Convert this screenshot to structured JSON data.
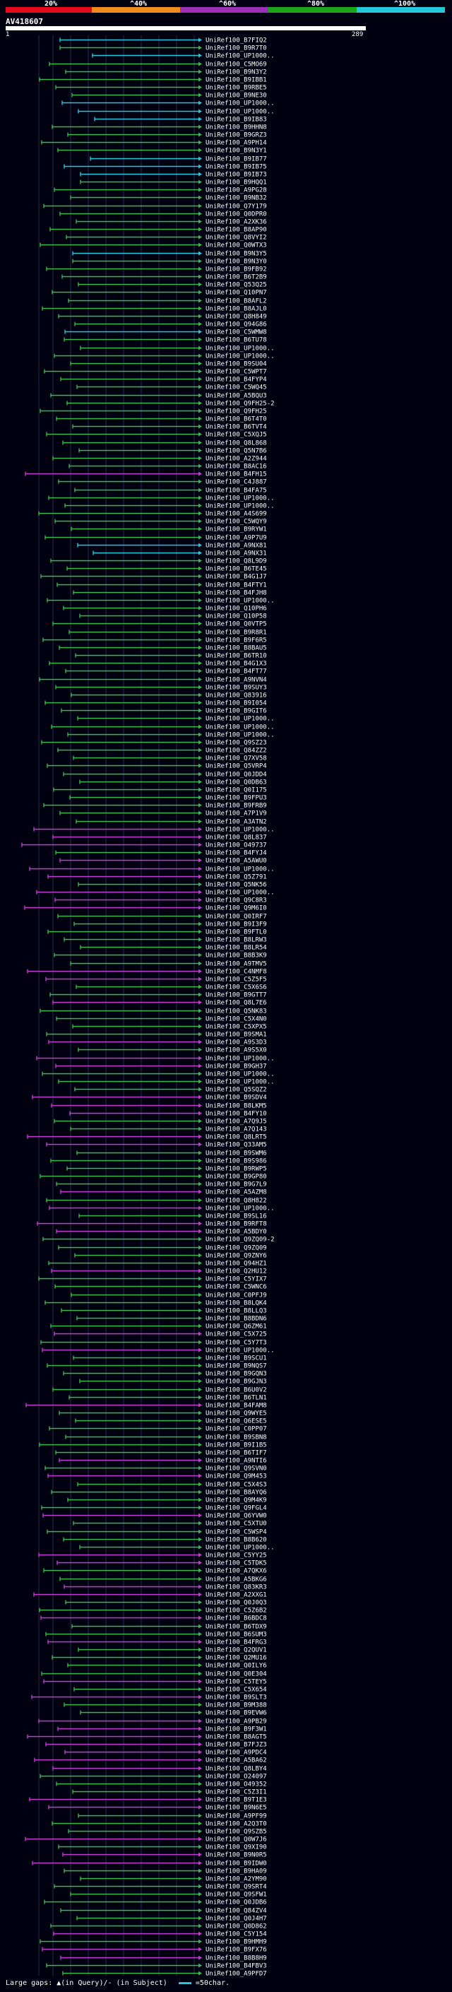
{
  "scale": {
    "labels": [
      "20%",
      "^40%",
      "^60%",
      "^80%",
      "^100%"
    ],
    "colors": [
      "#e60a1e",
      "#f08c1e",
      "#9b2fb5",
      "#1aa51a",
      "#22c7d8"
    ]
  },
  "query": {
    "title": "AV418607",
    "start": "1",
    "end": "289"
  },
  "colors": {
    "cyan": "#22c7d8",
    "green": "#37b84a",
    "magenta": "#c33bcf",
    "background": "#000010"
  },
  "hits": [
    {
      "acc": "UniRef100_B7FIQ2",
      "c": "cyan"
    },
    {
      "acc": "UniRef100_B9R7T0",
      "c": "green"
    },
    {
      "acc": "UniRef100_UP1000..",
      "c": "cyan"
    },
    {
      "acc": "UniRef100_C5MO69",
      "c": "green"
    },
    {
      "acc": "UniRef100_B9N3Y2",
      "c": "green"
    },
    {
      "acc": "UniRef100_B9IBB1",
      "c": "green"
    },
    {
      "acc": "UniRef100_B9RBE5",
      "c": "green"
    },
    {
      "acc": "UniRef100_B9NE30",
      "c": "green"
    },
    {
      "acc": "UniRef100_UP1000..",
      "c": "cyan"
    },
    {
      "acc": "UniRef100_UP1000..",
      "c": "cyan"
    },
    {
      "acc": "UniRef100_B9IB83",
      "c": "cyan"
    },
    {
      "acc": "UniRef100_B9HHN8",
      "c": "green"
    },
    {
      "acc": "UniRef100_B9GRZ3",
      "c": "green"
    },
    {
      "acc": "UniRef100_A9PH14",
      "c": "green"
    },
    {
      "acc": "UniRef100_B9N3Y1",
      "c": "green"
    },
    {
      "acc": "UniRef100_B9IB77",
      "c": "cyan"
    },
    {
      "acc": "UniRef100_B9IB75",
      "c": "cyan"
    },
    {
      "acc": "UniRef100_B9IB73",
      "c": "cyan"
    },
    {
      "acc": "UniRef100_B9HQQ1",
      "c": "green"
    },
    {
      "acc": "UniRef100_A9PG28",
      "c": "green"
    },
    {
      "acc": "UniRef100_B9NB32",
      "c": "green"
    },
    {
      "acc": "UniRef100_Q7Y179",
      "c": "green"
    },
    {
      "acc": "UniRef100_Q0DPR0",
      "c": "green"
    },
    {
      "acc": "UniRef100_A2XK36",
      "c": "green"
    },
    {
      "acc": "UniRef100_B8AP90",
      "c": "green"
    },
    {
      "acc": "UniRef100_Q8VYI2",
      "c": "green"
    },
    {
      "acc": "UniRef100_Q0WTX3",
      "c": "green"
    },
    {
      "acc": "UniRef100_B9N3Y5",
      "c": "cyan"
    },
    {
      "acc": "UniRef100_B9N3Y0",
      "c": "green"
    },
    {
      "acc": "UniRef100_B9FB92",
      "c": "green"
    },
    {
      "acc": "UniRef100_B6T2B9",
      "c": "green"
    },
    {
      "acc": "UniRef100_Q53Q25",
      "c": "green"
    },
    {
      "acc": "UniRef100_Q10PN7",
      "c": "green"
    },
    {
      "acc": "UniRef100_B8AFL2",
      "c": "green"
    },
    {
      "acc": "UniRef100_B8AJL0",
      "c": "green"
    },
    {
      "acc": "UniRef100_Q8H849",
      "c": "green"
    },
    {
      "acc": "UniRef100_Q94G86",
      "c": "green"
    },
    {
      "acc": "UniRef100_C5WMW8",
      "c": "cyan"
    },
    {
      "acc": "UniRef100_B6TU78",
      "c": "green"
    },
    {
      "acc": "UniRef100_UP1000..",
      "c": "green"
    },
    {
      "acc": "UniRef100_UP1000..",
      "c": "green"
    },
    {
      "acc": "UniRef100_B9SU04",
      "c": "green"
    },
    {
      "acc": "UniRef100_C5WPT7",
      "c": "green"
    },
    {
      "acc": "UniRef100_B4FYP4",
      "c": "green"
    },
    {
      "acc": "UniRef100_C5WQ45",
      "c": "green"
    },
    {
      "acc": "UniRef100_A5BQU3",
      "c": "green"
    },
    {
      "acc": "UniRef100_Q9FH25-2",
      "c": "green"
    },
    {
      "acc": "UniRef100_Q9FH25",
      "c": "green"
    },
    {
      "acc": "UniRef100_B6T4T0",
      "c": "green"
    },
    {
      "acc": "UniRef100_B6TVT4",
      "c": "green"
    },
    {
      "acc": "UniRef100_C5XQJ5",
      "c": "green"
    },
    {
      "acc": "UniRef100_Q8L868",
      "c": "green"
    },
    {
      "acc": "UniRef100_Q5N7B6",
      "c": "green"
    },
    {
      "acc": "UniRef100_A2Z944",
      "c": "green"
    },
    {
      "acc": "UniRef100_B8AC16",
      "c": "green"
    },
    {
      "acc": "UniRef100_B4FH15",
      "c": "magenta"
    },
    {
      "acc": "UniRef100_C4J887",
      "c": "green"
    },
    {
      "acc": "UniRef100_B4FA75",
      "c": "green"
    },
    {
      "acc": "UniRef100_UP1000..",
      "c": "green"
    },
    {
      "acc": "UniRef100_UP1000..",
      "c": "green"
    },
    {
      "acc": "UniRef100_A4S699",
      "c": "green"
    },
    {
      "acc": "UniRef100_C5WQY9",
      "c": "green"
    },
    {
      "acc": "UniRef100_B9RYW1",
      "c": "green"
    },
    {
      "acc": "UniRef100_A9P7U9",
      "c": "green"
    },
    {
      "acc": "UniRef100_A9NX81",
      "c": "cyan"
    },
    {
      "acc": "UniRef100_A9NX31",
      "c": "cyan"
    },
    {
      "acc": "UniRef100_Q8L9D9",
      "c": "green"
    },
    {
      "acc": "UniRef100_B6TE45",
      "c": "green"
    },
    {
      "acc": "UniRef100_B4G1J7",
      "c": "green"
    },
    {
      "acc": "UniRef100_B4FTY1",
      "c": "green"
    },
    {
      "acc": "UniRef100_B4FJH8",
      "c": "green"
    },
    {
      "acc": "UniRef100_UP1000..",
      "c": "green"
    },
    {
      "acc": "UniRef100_Q10PH6",
      "c": "green"
    },
    {
      "acc": "UniRef100_Q10P58",
      "c": "green"
    },
    {
      "acc": "UniRef100_Q0VTP5",
      "c": "green"
    },
    {
      "acc": "UniRef100_B9R8R1",
      "c": "green"
    },
    {
      "acc": "UniRef100_B9F6R5",
      "c": "green"
    },
    {
      "acc": "UniRef100_B8BAU5",
      "c": "green"
    },
    {
      "acc": "UniRef100_B6TR10",
      "c": "green"
    },
    {
      "acc": "UniRef100_B4G1X3",
      "c": "green"
    },
    {
      "acc": "UniRef100_B4FT77",
      "c": "green"
    },
    {
      "acc": "UniRef100_A9NVN4",
      "c": "green"
    },
    {
      "acc": "UniRef100_B9SUY3",
      "c": "green"
    },
    {
      "acc": "UniRef100_Q83916",
      "c": "green"
    },
    {
      "acc": "UniRef100_B9I054",
      "c": "green"
    },
    {
      "acc": "UniRef100_B9GIT6",
      "c": "green"
    },
    {
      "acc": "UniRef100_UP1000..",
      "c": "green"
    },
    {
      "acc": "UniRef100_UP1000..",
      "c": "green"
    },
    {
      "acc": "UniRef100_UP1000..",
      "c": "green"
    },
    {
      "acc": "UniRef100_Q9SZ23",
      "c": "green"
    },
    {
      "acc": "UniRef100_Q84ZZ2",
      "c": "green"
    },
    {
      "acc": "UniRef100_Q7XV58",
      "c": "green"
    },
    {
      "acc": "UniRef100_Q5VRP4",
      "c": "green"
    },
    {
      "acc": "UniRef100_Q0JDD4",
      "c": "green"
    },
    {
      "acc": "UniRef100_Q0DB63",
      "c": "green"
    },
    {
      "acc": "UniRef100_Q0I175",
      "c": "green"
    },
    {
      "acc": "UniRef100_B9FPU3",
      "c": "green"
    },
    {
      "acc": "UniRef100_B9FRB9",
      "c": "green"
    },
    {
      "acc": "UniRef100_A7P1V9",
      "c": "green"
    },
    {
      "acc": "UniRef100_A3ATN2",
      "c": "green"
    },
    {
      "acc": "UniRef100_UP1000..",
      "c": "magenta"
    },
    {
      "acc": "UniRef100_Q8L837",
      "c": "magenta"
    },
    {
      "acc": "UniRef100_O49737",
      "c": "magenta"
    },
    {
      "acc": "UniRef100_B4FYJ4",
      "c": "green"
    },
    {
      "acc": "UniRef100_A5AWU0",
      "c": "magenta"
    },
    {
      "acc": "UniRef100_UP1000..",
      "c": "magenta"
    },
    {
      "acc": "UniRef100_Q5Z791",
      "c": "magenta"
    },
    {
      "acc": "UniRef100_Q5NK56",
      "c": "green"
    },
    {
      "acc": "UniRef100_UP1000..",
      "c": "magenta"
    },
    {
      "acc": "UniRef100_Q9C8R3",
      "c": "magenta"
    },
    {
      "acc": "UniRef100_Q9M6I0",
      "c": "magenta"
    },
    {
      "acc": "UniRef100_Q0IRF7",
      "c": "green"
    },
    {
      "acc": "UniRef100_B9I3F9",
      "c": "green"
    },
    {
      "acc": "UniRef100_B9FTL0",
      "c": "green"
    },
    {
      "acc": "UniRef100_B8LRW3",
      "c": "green"
    },
    {
      "acc": "UniRef100_B8LR54",
      "c": "green"
    },
    {
      "acc": "UniRef100_B8B3K9",
      "c": "green"
    },
    {
      "acc": "UniRef100_A9TMV5",
      "c": "green"
    },
    {
      "acc": "UniRef100_C4NMF8",
      "c": "magenta"
    },
    {
      "acc": "UniRef100_C5Z5F5",
      "c": "magenta"
    },
    {
      "acc": "UniRef100_C5X6S6",
      "c": "green"
    },
    {
      "acc": "UniRef100_B9GTT7",
      "c": "green"
    },
    {
      "acc": "UniRef100_Q8L7E6",
      "c": "magenta"
    },
    {
      "acc": "UniRef100_Q5NK83",
      "c": "green"
    },
    {
      "acc": "UniRef100_C5X4N0",
      "c": "green"
    },
    {
      "acc": "UniRef100_C5XPX5",
      "c": "green"
    },
    {
      "acc": "UniRef100_B9SMA1",
      "c": "green"
    },
    {
      "acc": "UniRef100_A9S3D3",
      "c": "magenta"
    },
    {
      "acc": "UniRef100_A9S5X0",
      "c": "green"
    },
    {
      "acc": "UniRef100_UP1000..",
      "c": "magenta"
    },
    {
      "acc": "UniRef100_B9GH37",
      "c": "magenta"
    },
    {
      "acc": "UniRef100_UP1000..",
      "c": "green"
    },
    {
      "acc": "UniRef100_UP1000..",
      "c": "green"
    },
    {
      "acc": "UniRef100_Q5SQZ2",
      "c": "green"
    },
    {
      "acc": "UniRef100_B9SDV4",
      "c": "magenta"
    },
    {
      "acc": "UniRef100_B8LKM5",
      "c": "magenta"
    },
    {
      "acc": "UniRef100_B4FY10",
      "c": "magenta"
    },
    {
      "acc": "UniRef100_A7Q9J5",
      "c": "green"
    },
    {
      "acc": "UniRef100_A7Q143",
      "c": "green"
    },
    {
      "acc": "UniRef100_Q8LRT5",
      "c": "magenta"
    },
    {
      "acc": "UniRef100_Q33AM5",
      "c": "magenta"
    },
    {
      "acc": "UniRef100_B9SWM6",
      "c": "green"
    },
    {
      "acc": "UniRef100_B9S986",
      "c": "green"
    },
    {
      "acc": "UniRef100_B9RWP5",
      "c": "green"
    },
    {
      "acc": "UniRef100_B9GP80",
      "c": "green"
    },
    {
      "acc": "UniRef100_B9G7L9",
      "c": "green"
    },
    {
      "acc": "UniRef100_A5AZM8",
      "c": "magenta"
    },
    {
      "acc": "UniRef100_Q8H822",
      "c": "green"
    },
    {
      "acc": "UniRef100_UP1000..",
      "c": "magenta"
    },
    {
      "acc": "UniRef100_B9SL16",
      "c": "green"
    },
    {
      "acc": "UniRef100_B9RFT8",
      "c": "magenta"
    },
    {
      "acc": "UniRef100_A5BDY0",
      "c": "magenta"
    },
    {
      "acc": "UniRef100_Q9ZQ09-2",
      "c": "green"
    },
    {
      "acc": "UniRef100_Q9ZQ09",
      "c": "green"
    },
    {
      "acc": "UniRef100_Q9ZNY6",
      "c": "green"
    },
    {
      "acc": "UniRef100_Q94HZ1",
      "c": "green"
    },
    {
      "acc": "UniRef100_Q2HU12",
      "c": "magenta"
    },
    {
      "acc": "UniRef100_C5YIX7",
      "c": "green"
    },
    {
      "acc": "UniRef100_C5WNC6",
      "c": "green"
    },
    {
      "acc": "UniRef100_C0PFJ9",
      "c": "green"
    },
    {
      "acc": "UniRef100_B8LQK4",
      "c": "green"
    },
    {
      "acc": "UniRef100_B8LLQ3",
      "c": "green"
    },
    {
      "acc": "UniRef100_B8BDN6",
      "c": "green"
    },
    {
      "acc": "UniRef100_Q6ZM61",
      "c": "green"
    },
    {
      "acc": "UniRef100_C5X725",
      "c": "magenta"
    },
    {
      "acc": "UniRef100_C5Y7T3",
      "c": "green"
    },
    {
      "acc": "UniRef100_UP1000..",
      "c": "magenta"
    },
    {
      "acc": "UniRef100_B9SCU1",
      "c": "green"
    },
    {
      "acc": "UniRef100_B9NQS7",
      "c": "green"
    },
    {
      "acc": "UniRef100_B9GQN3",
      "c": "green"
    },
    {
      "acc": "UniRef100_B9GJN3",
      "c": "green"
    },
    {
      "acc": "UniRef100_B6U0V2",
      "c": "green"
    },
    {
      "acc": "UniRef100_B6TLN1",
      "c": "green"
    },
    {
      "acc": "UniRef100_B4FAM8",
      "c": "magenta"
    },
    {
      "acc": "UniRef100_Q9WYE5",
      "c": "green"
    },
    {
      "acc": "UniRef100_Q6ESE5",
      "c": "green"
    },
    {
      "acc": "UniRef100_C0PP07",
      "c": "green"
    },
    {
      "acc": "UniRef100_B9SBN8",
      "c": "green"
    },
    {
      "acc": "UniRef100_B9I1B5",
      "c": "green"
    },
    {
      "acc": "UniRef100_B6TIF7",
      "c": "green"
    },
    {
      "acc": "UniRef100_A9NTI6",
      "c": "magenta"
    },
    {
      "acc": "UniRef100_Q9SVN0",
      "c": "green"
    },
    {
      "acc": "UniRef100_Q9M453",
      "c": "magenta"
    },
    {
      "acc": "UniRef100_C5X4S3",
      "c": "green"
    },
    {
      "acc": "UniRef100_B8AYQ6",
      "c": "green"
    },
    {
      "acc": "UniRef100_Q9M4K9",
      "c": "green"
    },
    {
      "acc": "UniRef100_Q9FGL4",
      "c": "green"
    },
    {
      "acc": "UniRef100_Q6YVW0",
      "c": "magenta"
    },
    {
      "acc": "UniRef100_C5XTU0",
      "c": "green"
    },
    {
      "acc": "UniRef100_C5WSP4",
      "c": "green"
    },
    {
      "acc": "UniRef100_B8B620",
      "c": "green"
    },
    {
      "acc": "UniRef100_UP1000..",
      "c": "green"
    },
    {
      "acc": "UniRef100_C5YY25",
      "c": "magenta"
    },
    {
      "acc": "UniRef100_C5TDK5",
      "c": "magenta"
    },
    {
      "acc": "UniRef100_A7QKX6",
      "c": "green"
    },
    {
      "acc": "UniRef100_A5BKG6",
      "c": "green"
    },
    {
      "acc": "UniRef100_Q83KR3",
      "c": "magenta"
    },
    {
      "acc": "UniRef100_A2XXG1",
      "c": "magenta"
    },
    {
      "acc": "UniRef100_Q0J0Q3",
      "c": "green"
    },
    {
      "acc": "UniRef100_C5Z6B2",
      "c": "green"
    },
    {
      "acc": "UniRef100_B6BDC8",
      "c": "magenta"
    },
    {
      "acc": "UniRef100_B6TDX9",
      "c": "green"
    },
    {
      "acc": "UniRef100_B6SUM3",
      "c": "green"
    },
    {
      "acc": "UniRef100_B4FRG3",
      "c": "magenta"
    },
    {
      "acc": "UniRef100_Q2QUV1",
      "c": "green"
    },
    {
      "acc": "UniRef100_Q2MU16",
      "c": "green"
    },
    {
      "acc": "UniRef100_Q0ILY6",
      "c": "green"
    },
    {
      "acc": "UniRef100_Q0E304",
      "c": "green"
    },
    {
      "acc": "UniRef100_C5TEY5",
      "c": "magenta"
    },
    {
      "acc": "UniRef100_C5X654",
      "c": "green"
    },
    {
      "acc": "UniRef100_B9SLT3",
      "c": "magenta"
    },
    {
      "acc": "UniRef100_B9M388",
      "c": "green"
    },
    {
      "acc": "UniRef100_B9EVW6",
      "c": "green"
    },
    {
      "acc": "UniRef100_A9PB29",
      "c": "magenta"
    },
    {
      "acc": "UniRef100_B9F3W1",
      "c": "magenta"
    },
    {
      "acc": "UniRef100_B8AGT5",
      "c": "magenta"
    },
    {
      "acc": "UniRef100_B7FJZ3",
      "c": "magenta"
    },
    {
      "acc": "UniRef100_A9PDC4",
      "c": "magenta"
    },
    {
      "acc": "UniRef100_A5BA62",
      "c": "magenta"
    },
    {
      "acc": "UniRef100_Q8LBY4",
      "c": "magenta"
    },
    {
      "acc": "UniRef100_O24097",
      "c": "green"
    },
    {
      "acc": "UniRef100_O49352",
      "c": "green"
    },
    {
      "acc": "UniRef100_C5Z3I1",
      "c": "green"
    },
    {
      "acc": "UniRef100_B9T1E3",
      "c": "magenta"
    },
    {
      "acc": "UniRef100_B9N6E5",
      "c": "magenta"
    },
    {
      "acc": "UniRef100_A9PF99",
      "c": "green"
    },
    {
      "acc": "UniRef100_A2Q3T0",
      "c": "green"
    },
    {
      "acc": "UniRef100_Q9SZB5",
      "c": "green"
    },
    {
      "acc": "UniRef100_Q0W7J6",
      "c": "magenta"
    },
    {
      "acc": "UniRef100_Q9XI90",
      "c": "green"
    },
    {
      "acc": "UniRef100_B9N0R5",
      "c": "magenta"
    },
    {
      "acc": "UniRef100_B9IDW0",
      "c": "magenta"
    },
    {
      "acc": "UniRef100_B9HA09",
      "c": "green"
    },
    {
      "acc": "UniRef100_A2YM90",
      "c": "green"
    },
    {
      "acc": "UniRef100_Q9SRT4",
      "c": "green"
    },
    {
      "acc": "UniRef100_Q9SFW1",
      "c": "green"
    },
    {
      "acc": "UniRef100_Q0JDB6",
      "c": "green"
    },
    {
      "acc": "UniRef100_Q84ZV4",
      "c": "green"
    },
    {
      "acc": "UniRef100_Q0J4H7",
      "c": "green"
    },
    {
      "acc": "UniRef100_Q0D862",
      "c": "green"
    },
    {
      "acc": "UniRef100_C5Y154",
      "c": "magenta"
    },
    {
      "acc": "UniRef100_B9HMH9",
      "c": "green"
    },
    {
      "acc": "UniRef100_B9FX76",
      "c": "magenta"
    },
    {
      "acc": "UniRef100_B8B8H9",
      "c": "magenta"
    },
    {
      "acc": "UniRef100_B4FBV3",
      "c": "green"
    },
    {
      "acc": "UniRef100_A9PFD7",
      "c": "green"
    }
  ],
  "legend": {
    "text": "Large gaps: ▲(in Query)/- (in Subject)",
    "scale_note": "=50char."
  }
}
